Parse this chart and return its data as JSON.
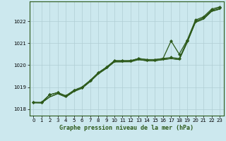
{
  "xlabel": "Graphe pression niveau de la mer (hPa)",
  "ylim": [
    1017.7,
    1022.9
  ],
  "xlim": [
    -0.5,
    23.5
  ],
  "yticks": [
    1018,
    1019,
    1020,
    1021,
    1022
  ],
  "xticks": [
    0,
    1,
    2,
    3,
    4,
    5,
    6,
    7,
    8,
    9,
    10,
    11,
    12,
    13,
    14,
    15,
    16,
    17,
    18,
    19,
    20,
    21,
    22,
    23
  ],
  "background_color": "#cce8ee",
  "grid_color": "#b0cdd4",
  "line_color": "#2d5a1b",
  "line1": [
    1018.3,
    1018.3,
    1018.65,
    1018.75,
    1018.6,
    1018.85,
    1019.0,
    1019.3,
    1019.65,
    1019.9,
    1020.2,
    1020.2,
    1020.2,
    1020.3,
    1020.25,
    1020.25,
    1020.3,
    1020.35,
    1020.3,
    1021.1,
    1022.0,
    1022.15,
    1022.5,
    1022.6
  ],
  "line2": [
    1018.3,
    1018.3,
    1018.65,
    1018.75,
    1018.6,
    1018.85,
    1019.0,
    1019.3,
    1019.65,
    1019.9,
    1020.2,
    1020.2,
    1020.2,
    1020.3,
    1020.25,
    1020.25,
    1020.3,
    1021.1,
    1020.5,
    1021.15,
    1022.05,
    1022.2,
    1022.55,
    1022.65
  ],
  "line3": [
    1018.3,
    1018.28,
    1018.55,
    1018.7,
    1018.55,
    1018.8,
    1018.95,
    1019.25,
    1019.6,
    1019.85,
    1020.15,
    1020.15,
    1020.2,
    1020.25,
    1020.2,
    1020.2,
    1020.25,
    1020.3,
    1020.25,
    1021.05,
    1021.95,
    1022.1,
    1022.45,
    1022.55
  ],
  "line4": [
    1018.28,
    1018.28,
    1018.55,
    1018.7,
    1018.55,
    1018.8,
    1018.95,
    1019.25,
    1019.6,
    1019.85,
    1020.15,
    1020.15,
    1020.15,
    1020.25,
    1020.2,
    1020.2,
    1020.25,
    1020.3,
    1020.25,
    1021.05,
    1021.95,
    1022.1,
    1022.45,
    1022.55
  ]
}
